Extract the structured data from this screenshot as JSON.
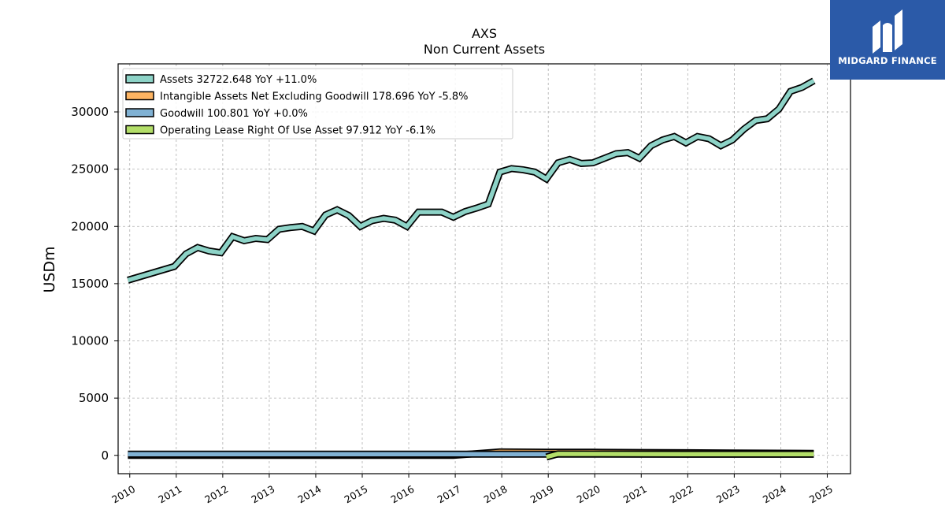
{
  "chart_data": {
    "type": "area",
    "title": "AXS",
    "subtitle": "Non Current  Assets",
    "ylabel": "USDm",
    "xlabel": "",
    "ylim": [
      -1600,
      34200
    ],
    "xlim": [
      2009.75,
      2025.5
    ],
    "yticks": [
      0,
      5000,
      10000,
      15000,
      20000,
      25000,
      30000
    ],
    "xticks": [
      2010,
      2011,
      2012,
      2013,
      2014,
      2015,
      2016,
      2017,
      2018,
      2019,
      2020,
      2021,
      2022,
      2023,
      2024,
      2025
    ],
    "grid": true,
    "legend_position": "top-left",
    "series": [
      {
        "name": "Assets",
        "legend_label": "Assets  32722.648 YoY +11.0%",
        "color": "#8dd3c7",
        "x": [
          2009.96,
          2010.96,
          2011.21,
          2011.46,
          2011.71,
          2011.96,
          2012.21,
          2012.46,
          2012.71,
          2012.96,
          2013.21,
          2013.46,
          2013.71,
          2013.96,
          2014.21,
          2014.46,
          2014.71,
          2014.96,
          2015.21,
          2015.46,
          2015.71,
          2015.96,
          2016.21,
          2016.46,
          2016.71,
          2016.96,
          2017.21,
          2017.46,
          2017.71,
          2017.96,
          2018.21,
          2018.46,
          2018.71,
          2018.96,
          2019.21,
          2019.46,
          2019.71,
          2019.96,
          2020.21,
          2020.46,
          2020.71,
          2020.96,
          2021.21,
          2021.46,
          2021.71,
          2021.96,
          2022.21,
          2022.46,
          2022.71,
          2022.96,
          2023.21,
          2023.46,
          2023.71,
          2023.96,
          2024.21,
          2024.46,
          2024.71
        ],
        "values": [
          15300,
          16500,
          17600,
          18150,
          17850,
          17700,
          19100,
          18750,
          18950,
          18850,
          19750,
          19900,
          20000,
          19600,
          21000,
          21450,
          20950,
          20000,
          20500,
          20700,
          20550,
          20000,
          21250,
          21250,
          21250,
          20800,
          21300,
          21600,
          21950,
          24750,
          25050,
          24950,
          24750,
          24150,
          25550,
          25850,
          25500,
          25550,
          25950,
          26350,
          26450,
          25950,
          27050,
          27550,
          27850,
          27300,
          27850,
          27650,
          27050,
          27550,
          28500,
          29250,
          29400,
          30250,
          31800,
          32150,
          32722.648
        ]
      },
      {
        "name": "Intangible Assets Net Excluding Goodwill",
        "legend_label": "Intangible Assets Net Excluding Goodwill  178.696 YoY -5.8%",
        "color": "#fdb462",
        "x": [
          2009.96,
          2016.96,
          2017.96,
          2018.96,
          2019.96,
          2020.96,
          2021.96,
          2022.96,
          2023.96,
          2024.71
        ],
        "values": [
          0,
          0,
          300,
          280,
          270,
          250,
          230,
          210,
          190,
          178.696
        ]
      },
      {
        "name": "Goodwill",
        "legend_label": "Goodwill  100.801 YoY +0.0%",
        "color": "#80b1d3",
        "x": [
          2009.96,
          2024.71
        ],
        "values": [
          100.801,
          100.801
        ]
      },
      {
        "name": "Operating Lease Right Of Use Asset",
        "legend_label": "Operating Lease Right Of Use Asset  97.912 YoY -6.1%",
        "color": "#b3de69",
        "x": [
          2018.96,
          2019.21,
          2019.96,
          2020.96,
          2021.96,
          2022.96,
          2023.96,
          2024.71
        ],
        "values": [
          -150,
          130,
          120,
          115,
          110,
          105,
          104,
          97.912
        ]
      }
    ]
  },
  "logo": {
    "text": "MIDGARD FINANCE",
    "color": "#2b5aa8"
  }
}
